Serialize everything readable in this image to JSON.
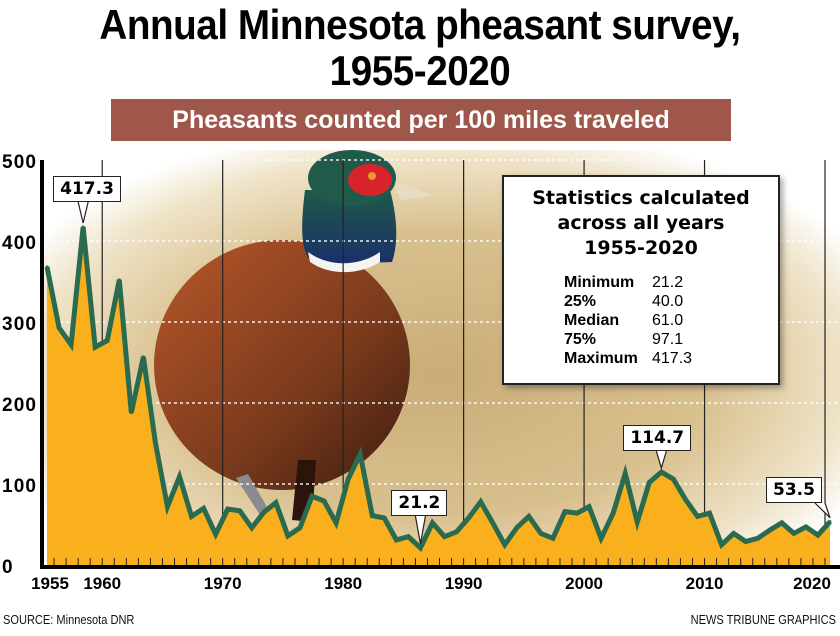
{
  "title_line1": "Annual Minnesota pheasant survey,",
  "title_line2": "1955-2020",
  "banner": "Pheasants counted per 100 miles traveled",
  "stats": {
    "title_line1": "Statistics calculated",
    "title_line2": "across all years",
    "title_line3": "1955-2020",
    "rows": [
      {
        "label": "Minimum",
        "value": "21.2"
      },
      {
        "label": "25%",
        "value": "40.0"
      },
      {
        "label": "Median",
        "value": "61.0"
      },
      {
        "label": "75%",
        "value": "97.1"
      },
      {
        "label": "Maximum",
        "value": "417.3"
      }
    ]
  },
  "callouts": [
    {
      "year": 1958,
      "value": 417.3,
      "label": "417.3"
    },
    {
      "year": 1986,
      "value": 21.2,
      "label": "21.2"
    },
    {
      "year": 2006,
      "value": 114.7,
      "label": "114.7"
    },
    {
      "year": 2020,
      "value": 53.5,
      "label": "53.5"
    }
  ],
  "source": "SOURCE: Minnesota DNR",
  "credit": "NEWS TRIBUNE GRAPHICS",
  "colors": {
    "fill": "#f9b01c",
    "line": "#2a6b4f",
    "banner": "#a0574b"
  },
  "chart_data": {
    "type": "area",
    "title": "Annual Minnesota pheasant survey, 1955-2020",
    "subtitle": "Pheasants counted per 100 miles traveled",
    "xlabel": "",
    "ylabel": "",
    "xlim": [
      1955,
      2020
    ],
    "ylim": [
      0,
      500
    ],
    "yticks": [
      "0",
      "100",
      "200",
      "300",
      "400",
      "500"
    ],
    "ytick_values": [
      0,
      100,
      200,
      300,
      400,
      500
    ],
    "xticks": [
      "1955",
      "1960",
      "1970",
      "1980",
      "1990",
      "2000",
      "2010",
      "2020"
    ],
    "xtick_values": [
      1955,
      1960,
      1970,
      1980,
      1990,
      2000,
      2010,
      2020
    ],
    "grid": true,
    "x": [
      1955,
      1956,
      1957,
      1958,
      1959,
      1960,
      1961,
      1962,
      1963,
      1964,
      1965,
      1966,
      1967,
      1968,
      1969,
      1970,
      1971,
      1972,
      1973,
      1974,
      1975,
      1976,
      1977,
      1978,
      1979,
      1980,
      1981,
      1982,
      1983,
      1984,
      1985,
      1986,
      1987,
      1988,
      1989,
      1990,
      1991,
      1992,
      1993,
      1994,
      1995,
      1996,
      1997,
      1998,
      1999,
      2000,
      2001,
      2002,
      2003,
      2004,
      2005,
      2006,
      2007,
      2008,
      2009,
      2010,
      2011,
      2012,
      2013,
      2014,
      2015,
      2016,
      2017,
      2018,
      2019,
      2020
    ],
    "series": [
      {
        "name": "Pheasants counted per 100 miles traveled",
        "values": [
          368,
          293,
          272,
          417.3,
          269,
          277,
          352,
          188,
          257,
          151,
          72,
          109,
          60,
          70,
          38,
          69,
          67,
          46,
          65,
          77,
          36,
          46,
          85,
          79,
          52,
          106,
          137,
          61,
          58,
          31,
          35,
          21.2,
          52,
          35,
          41,
          58,
          78,
          52,
          25,
          46,
          60,
          39,
          33,
          66,
          64,
          72,
          33,
          64,
          113,
          53,
          102,
          114.7,
          106,
          81,
          60,
          64,
          25,
          39,
          29,
          33,
          43,
          52,
          39,
          47,
          37,
          53.5
        ]
      }
    ]
  }
}
